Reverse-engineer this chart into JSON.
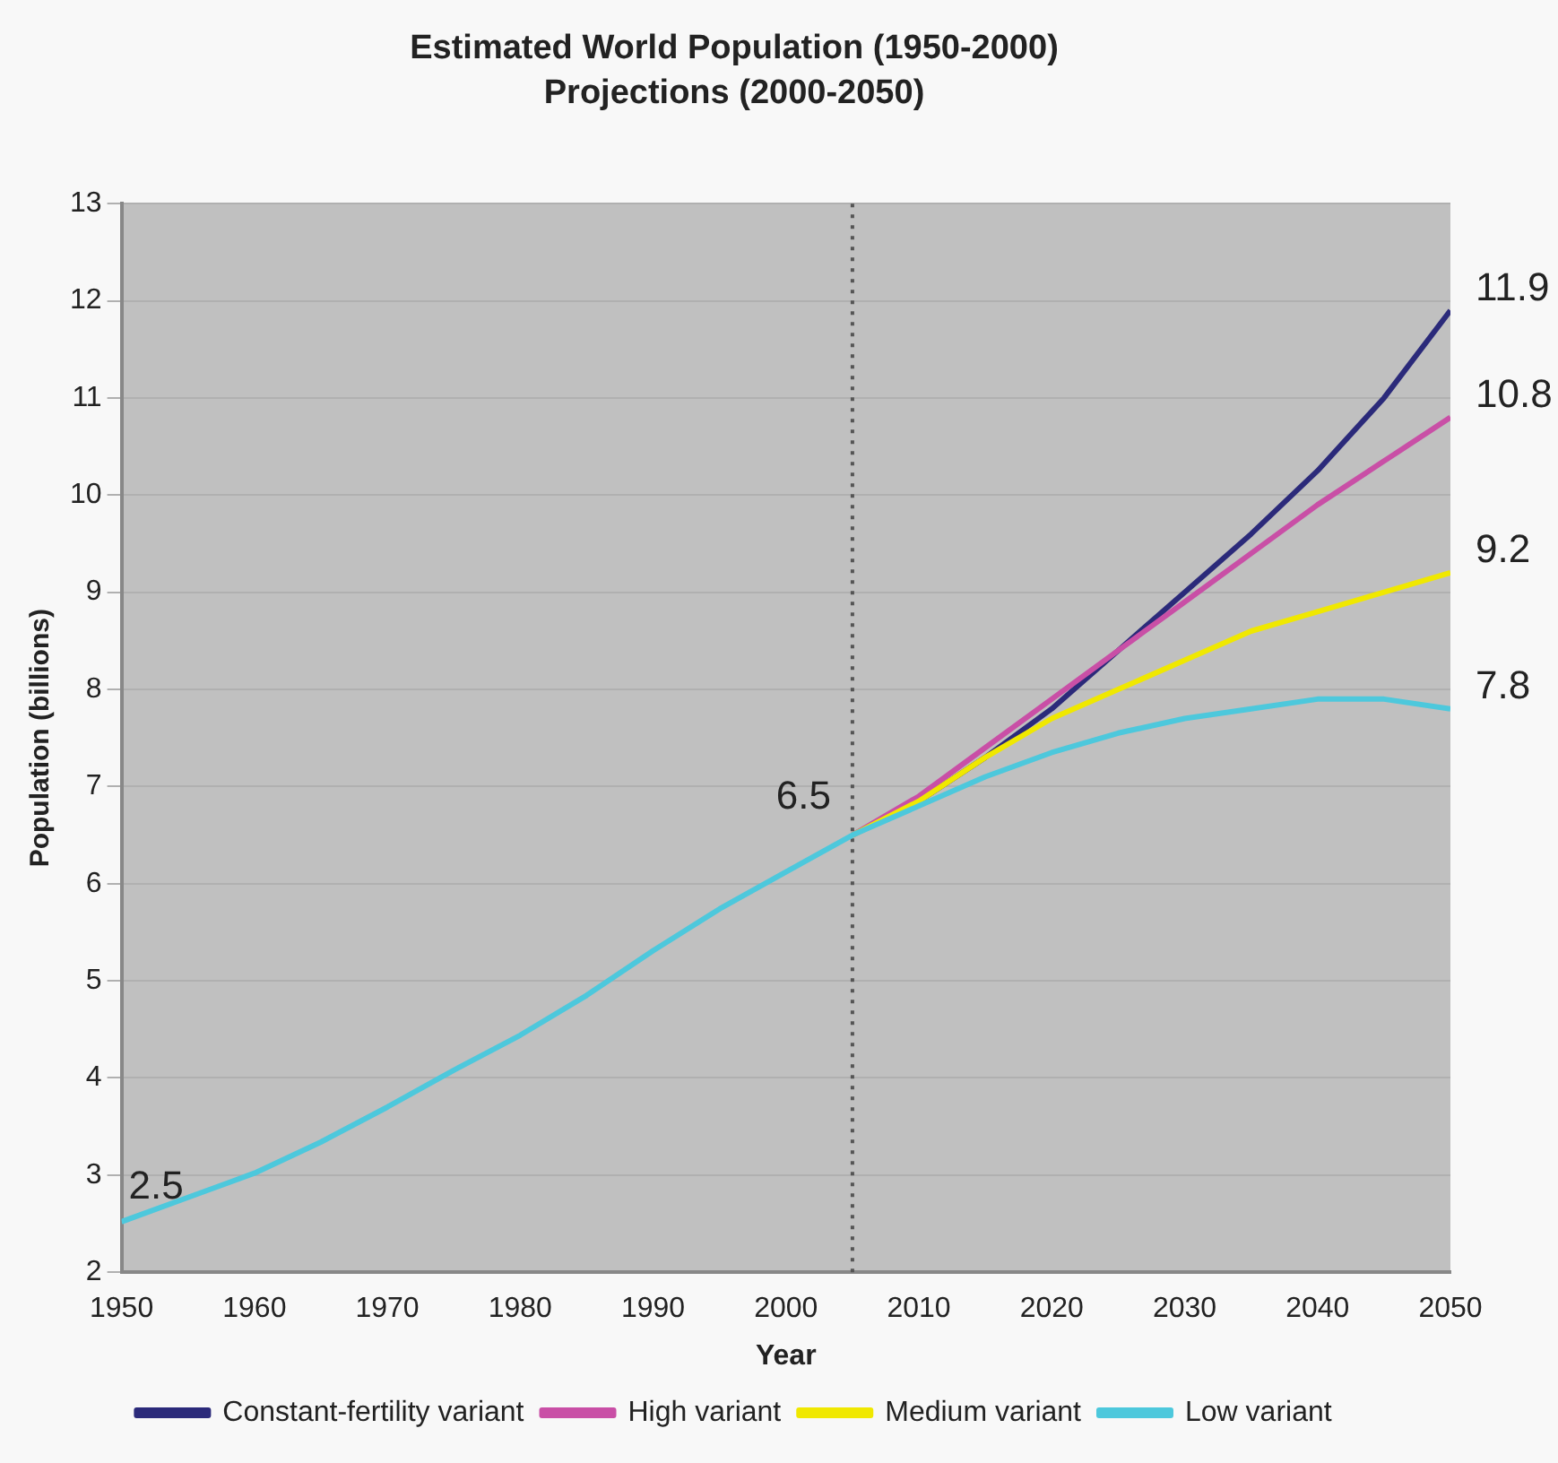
{
  "chart_data": {
    "type": "line",
    "title": "Estimated World Population (1950-2000)",
    "subtitle": "Projections (2000-2050)",
    "xlabel": "Year",
    "ylabel": "Population (billions)",
    "xlim": [
      1950,
      2050
    ],
    "xticks": [
      1950,
      1960,
      1970,
      1980,
      1990,
      2000,
      2010,
      2020,
      2030,
      2040,
      2050
    ],
    "ylim": [
      2,
      13
    ],
    "yticks": [
      2,
      3,
      4,
      5,
      6,
      7,
      8,
      9,
      10,
      11,
      12,
      13
    ],
    "grid": "y",
    "legend": "bottom",
    "marker": "none",
    "line_style": "solid",
    "series": [
      {
        "name": "Constant-fertility variant",
        "color": "#2b2a7a",
        "x": [
          2005,
          2010,
          2015,
          2020,
          2025,
          2030,
          2035,
          2040,
          2045,
          2050
        ],
        "values": [
          6.5,
          6.85,
          7.3,
          7.8,
          8.4,
          9.0,
          9.6,
          10.25,
          11.0,
          11.9
        ]
      },
      {
        "name": "High variant",
        "color": "#c94fa6",
        "x": [
          2005,
          2010,
          2015,
          2020,
          2025,
          2030,
          2035,
          2040,
          2045,
          2050
        ],
        "values": [
          6.5,
          6.9,
          7.4,
          7.9,
          8.4,
          8.9,
          9.4,
          9.9,
          10.35,
          10.8
        ]
      },
      {
        "name": "Medium variant",
        "color": "#f0e800",
        "x": [
          2005,
          2010,
          2015,
          2020,
          2025,
          2030,
          2035,
          2040,
          2045,
          2050
        ],
        "values": [
          6.5,
          6.85,
          7.3,
          7.7,
          8.0,
          8.3,
          8.6,
          8.8,
          9.0,
          9.2
        ]
      },
      {
        "name": "Low variant",
        "color": "#4dc8dc",
        "x": [
          1950,
          1955,
          1960,
          1965,
          1970,
          1975,
          1980,
          1985,
          1990,
          1995,
          2000,
          2005,
          2010,
          2015,
          2020,
          2025,
          2030,
          2035,
          2040,
          2045,
          2050
        ],
        "values": [
          2.52,
          2.77,
          3.02,
          3.34,
          3.7,
          4.08,
          4.44,
          4.85,
          5.31,
          5.74,
          6.12,
          6.5,
          6.8,
          7.1,
          7.35,
          7.55,
          7.7,
          7.8,
          7.9,
          7.9,
          7.8
        ]
      }
    ],
    "ref_lines": [
      {
        "axis": "x",
        "value": 2005,
        "color": "#555555",
        "line_style": "dotted"
      }
    ],
    "annotations": [
      {
        "text": "2.5",
        "x": 1950,
        "y": 2.52
      },
      {
        "text": "6.5",
        "x": 2005,
        "y": 6.5
      },
      {
        "text": "11.9",
        "x": 2050,
        "y": 11.9
      },
      {
        "text": "10.8",
        "x": 2050,
        "y": 10.8
      },
      {
        "text": "9.2",
        "x": 2050,
        "y": 9.2
      },
      {
        "text": "7.8",
        "x": 2050,
        "y": 7.8
      }
    ]
  }
}
